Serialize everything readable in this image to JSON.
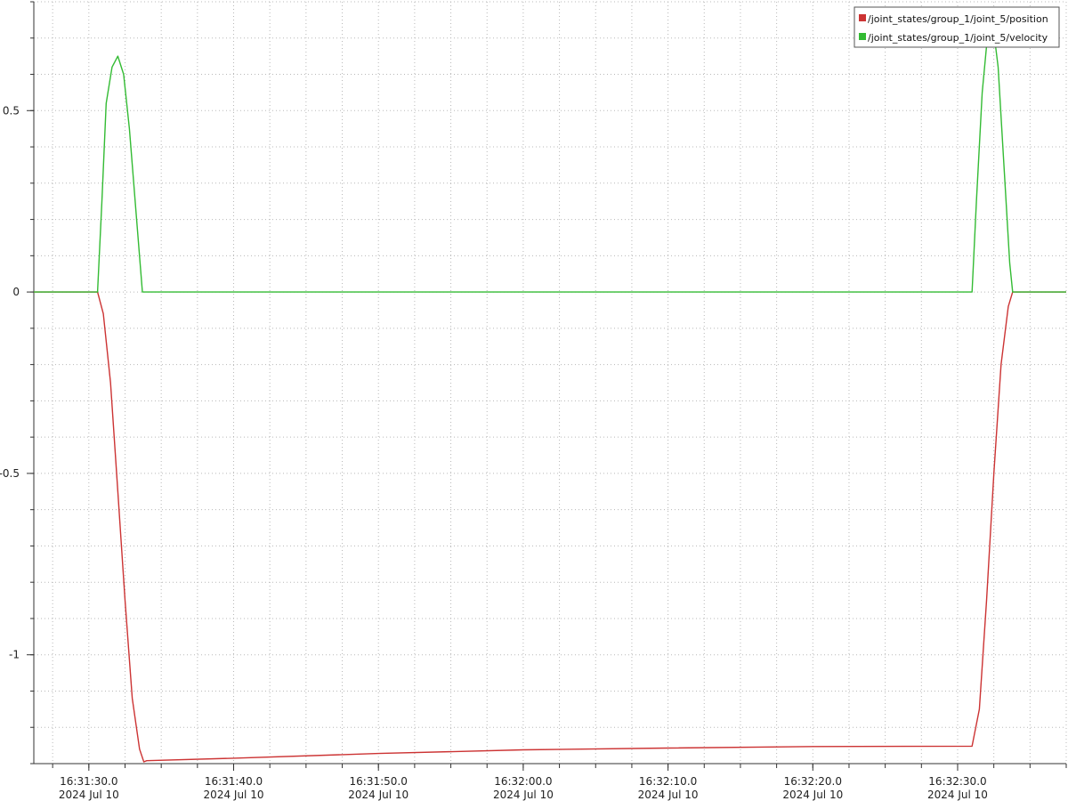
{
  "chart_data": {
    "type": "line",
    "x_axis": {
      "type": "time",
      "range": [
        "16:31:26.2",
        "16:32:37.5"
      ],
      "ticks": [
        {
          "time": "16:31:30.0",
          "date": "2024 Jul 10"
        },
        {
          "time": "16:31:40.0",
          "date": "2024 Jul 10"
        },
        {
          "time": "16:31:50.0",
          "date": "2024 Jul 10"
        },
        {
          "time": "16:32:00.0",
          "date": "2024 Jul 10"
        },
        {
          "time": "16:32:10.0",
          "date": "2024 Jul 10"
        },
        {
          "time": "16:32:20.0",
          "date": "2024 Jul 10"
        },
        {
          "time": "16:32:30.0",
          "date": "2024 Jul 10"
        }
      ]
    },
    "y_axis": {
      "range": [
        -1.3,
        0.8
      ],
      "ticks": [
        "0.5",
        "0",
        "-0.5",
        "-1"
      ],
      "tick_values": [
        0.5,
        0,
        -0.5,
        -1
      ]
    },
    "grid": true,
    "legend_position": "top-right",
    "series": [
      {
        "name": "/joint_states/group_1/joint_5/position",
        "color": "#cc3333",
        "points": [
          [
            "16:31:26.2",
            0
          ],
          [
            "16:31:30.6",
            0
          ],
          [
            "16:31:31.0",
            -0.06
          ],
          [
            "16:31:31.5",
            -0.25
          ],
          [
            "16:31:32.0",
            -0.55
          ],
          [
            "16:31:32.5",
            -0.85
          ],
          [
            "16:31:33.0",
            -1.12
          ],
          [
            "16:31:33.5",
            -1.26
          ],
          [
            "16:31:33.8",
            -1.295
          ],
          [
            "16:31:34.0",
            -1.292
          ],
          [
            "16:31:40.0",
            -1.285
          ],
          [
            "16:31:50.0",
            -1.272
          ],
          [
            "16:32:00.0",
            -1.262
          ],
          [
            "16:32:10.0",
            -1.257
          ],
          [
            "16:32:20.0",
            -1.253
          ],
          [
            "16:32:31.0",
            -1.252
          ],
          [
            "16:32:31.5",
            -1.15
          ],
          [
            "16:32:32.0",
            -0.85
          ],
          [
            "16:32:32.5",
            -0.5
          ],
          [
            "16:32:33.0",
            -0.2
          ],
          [
            "16:32:33.5",
            -0.04
          ],
          [
            "16:32:33.8",
            0
          ],
          [
            "16:32:37.5",
            0
          ]
        ]
      },
      {
        "name": "/joint_states/group_1/joint_5/velocity",
        "color": "#33bb33",
        "points": [
          [
            "16:31:26.2",
            0
          ],
          [
            "16:31:30.6",
            0
          ],
          [
            "16:31:30.9",
            0.25
          ],
          [
            "16:31:31.2",
            0.52
          ],
          [
            "16:31:31.6",
            0.62
          ],
          [
            "16:31:32.0",
            0.65
          ],
          [
            "16:31:32.4",
            0.6
          ],
          [
            "16:31:32.8",
            0.45
          ],
          [
            "16:31:33.3",
            0.2
          ],
          [
            "16:31:33.7",
            0
          ],
          [
            "16:32:31.0",
            0
          ],
          [
            "16:32:31.3",
            0.25
          ],
          [
            "16:32:31.7",
            0.55
          ],
          [
            "16:32:32.1",
            0.72
          ],
          [
            "16:32:32.4",
            0.75
          ],
          [
            "16:32:32.8",
            0.62
          ],
          [
            "16:32:33.2",
            0.35
          ],
          [
            "16:32:33.6",
            0.08
          ],
          [
            "16:32:33.8",
            0
          ],
          [
            "16:32:37.5",
            0
          ]
        ]
      }
    ]
  }
}
